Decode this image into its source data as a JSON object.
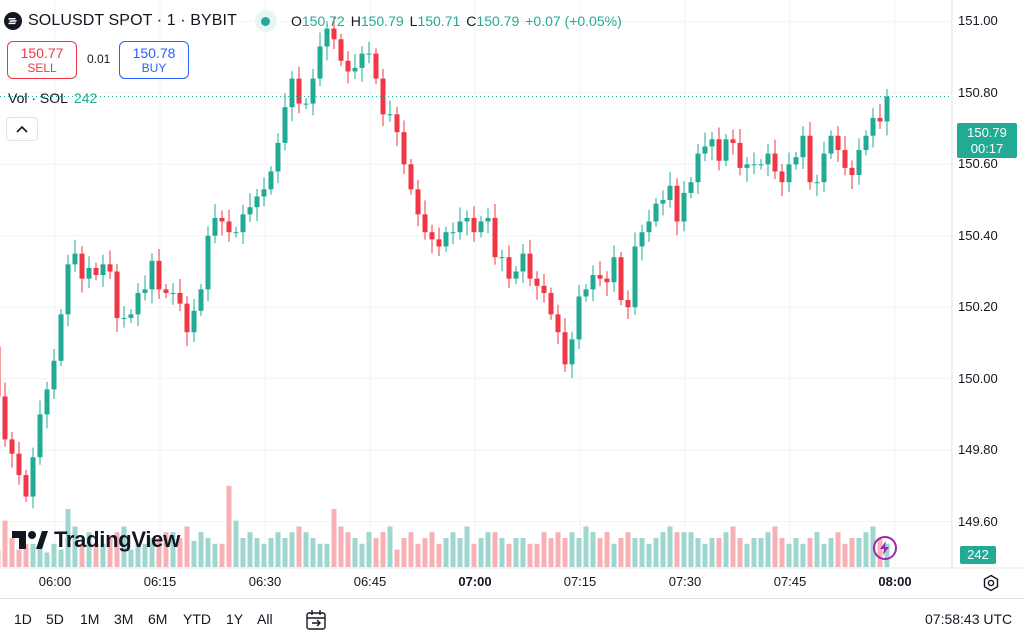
{
  "header": {
    "title": "SOLUSDT SPOT · 1 · BYBIT",
    "ohlc": [
      {
        "key": "O",
        "value": "150.72"
      },
      {
        "key": "H",
        "value": "150.79"
      },
      {
        "key": "L",
        "value": "150.71"
      },
      {
        "key": "C",
        "value": "150.79"
      }
    ],
    "change": "+0.07 (+0.05%)"
  },
  "trade": {
    "sell_price": "150.77",
    "sell_label": "SELL",
    "spread": "0.01",
    "buy_price": "150.78",
    "buy_label": "BUY"
  },
  "volume_legend": {
    "label": "Vol · SOL",
    "value": "242"
  },
  "last_price": {
    "price": "150.79",
    "countdown": "00:17"
  },
  "volume_tag": "242",
  "logo_text": "TradingView",
  "ranges": [
    "1D",
    "5D",
    "1M",
    "3M",
    "6M",
    "YTD",
    "1Y",
    "All"
  ],
  "clock": "07:58:43 UTC",
  "colors": {
    "up": "#22ab94",
    "down": "#f23645",
    "up_vol": "#9fd6cd",
    "down_vol": "#f7b0b6"
  },
  "chart_data": {
    "type": "candlestick",
    "y_ticks": [
      "151.00",
      "150.80",
      "150.60",
      "150.40",
      "150.20",
      "150.00",
      "149.80",
      "149.60"
    ],
    "ylim": [
      149.47,
      151.06
    ],
    "x_ticks": [
      {
        "label": "06:00",
        "minute": 0
      },
      {
        "label": "06:15",
        "minute": 15
      },
      {
        "label": "06:30",
        "minute": 30
      },
      {
        "label": "06:45",
        "minute": 45
      },
      {
        "label": "07:00",
        "minute": 60,
        "bold": true
      },
      {
        "label": "07:15",
        "minute": 75
      },
      {
        "label": "07:30",
        "minute": 90
      },
      {
        "label": "07:45",
        "minute": 105
      },
      {
        "label": "08:00",
        "minute": 120,
        "bold": true
      }
    ],
    "close": [
      149.97,
      149.94,
      149.94,
      150.02,
      150.09,
      150.07,
      149.96,
      149.85,
      149.8,
      149.81,
      149.91,
      149.96,
      150.0,
      150.04,
      150.05,
      150.09,
      149.95,
      149.83,
      149.79,
      149.73,
      149.67,
      149.78,
      149.9,
      149.97,
      150.05,
      150.18,
      150.32,
      150.35,
      150.28,
      150.31,
      150.29,
      150.32,
      150.3,
      150.17,
      150.17,
      150.18,
      150.24,
      150.25,
      150.33,
      150.25,
      150.24,
      150.24,
      150.21,
      150.13,
      150.19,
      150.25,
      150.4,
      150.45,
      150.44,
      150.41,
      150.41,
      150.46,
      150.48,
      150.51,
      150.53,
      150.58,
      150.66,
      150.76,
      150.84,
      150.77,
      150.77,
      150.84,
      150.93,
      150.98,
      150.95,
      150.89,
      150.86,
      150.87,
      150.91,
      150.91,
      150.84,
      150.74,
      150.74,
      150.69,
      150.6,
      150.53,
      150.46,
      150.41,
      150.39,
      150.37,
      150.41,
      150.41,
      150.44,
      150.45,
      150.41,
      150.44,
      150.45,
      150.34,
      150.34,
      150.28,
      150.3,
      150.35,
      150.28,
      150.26,
      150.24,
      150.18,
      150.13,
      150.04,
      150.11,
      150.23,
      150.25,
      150.29,
      150.28,
      150.27,
      150.34,
      150.22,
      150.2,
      150.37,
      150.41,
      150.44,
      150.49,
      150.5,
      150.54,
      150.44,
      150.52,
      150.55,
      150.63,
      150.65,
      150.67,
      150.61,
      150.67,
      150.66,
      150.59,
      150.6,
      150.6,
      150.6,
      150.63,
      150.58,
      150.55,
      150.6,
      150.62,
      150.68,
      150.55,
      150.55,
      150.63,
      150.68,
      150.64,
      150.59,
      150.57,
      150.64,
      150.68,
      150.73,
      150.72,
      150.79
    ],
    "volume": [
      30,
      12,
      8,
      8,
      12,
      8,
      8,
      10,
      6,
      8,
      10,
      5,
      10,
      14,
      12,
      8,
      6,
      16,
      10,
      6,
      8,
      8,
      8,
      5,
      8,
      6,
      20,
      14,
      8,
      12,
      8,
      8,
      10,
      12,
      14,
      6,
      8,
      8,
      10,
      10,
      12,
      12,
      10,
      14,
      9,
      12,
      10,
      8,
      8,
      28,
      16,
      10,
      12,
      10,
      8,
      10,
      12,
      10,
      12,
      14,
      12,
      10,
      8,
      8,
      20,
      14,
      12,
      10,
      8,
      12,
      10,
      12,
      14,
      6,
      10,
      12,
      8,
      10,
      12,
      8,
      10,
      12,
      10,
      14,
      8,
      10,
      12,
      12,
      10,
      8,
      10,
      10,
      8,
      8,
      12,
      10,
      12,
      10,
      12,
      10,
      14,
      12,
      10,
      12,
      8,
      10,
      12,
      10,
      10,
      8,
      10,
      12,
      14,
      12,
      12,
      12,
      10,
      8,
      10,
      10,
      12,
      14,
      10,
      8,
      10,
      10,
      12,
      14,
      10,
      8,
      10,
      8,
      10,
      12,
      8,
      10,
      12,
      8,
      10,
      10,
      12,
      14,
      10,
      8
    ]
  }
}
